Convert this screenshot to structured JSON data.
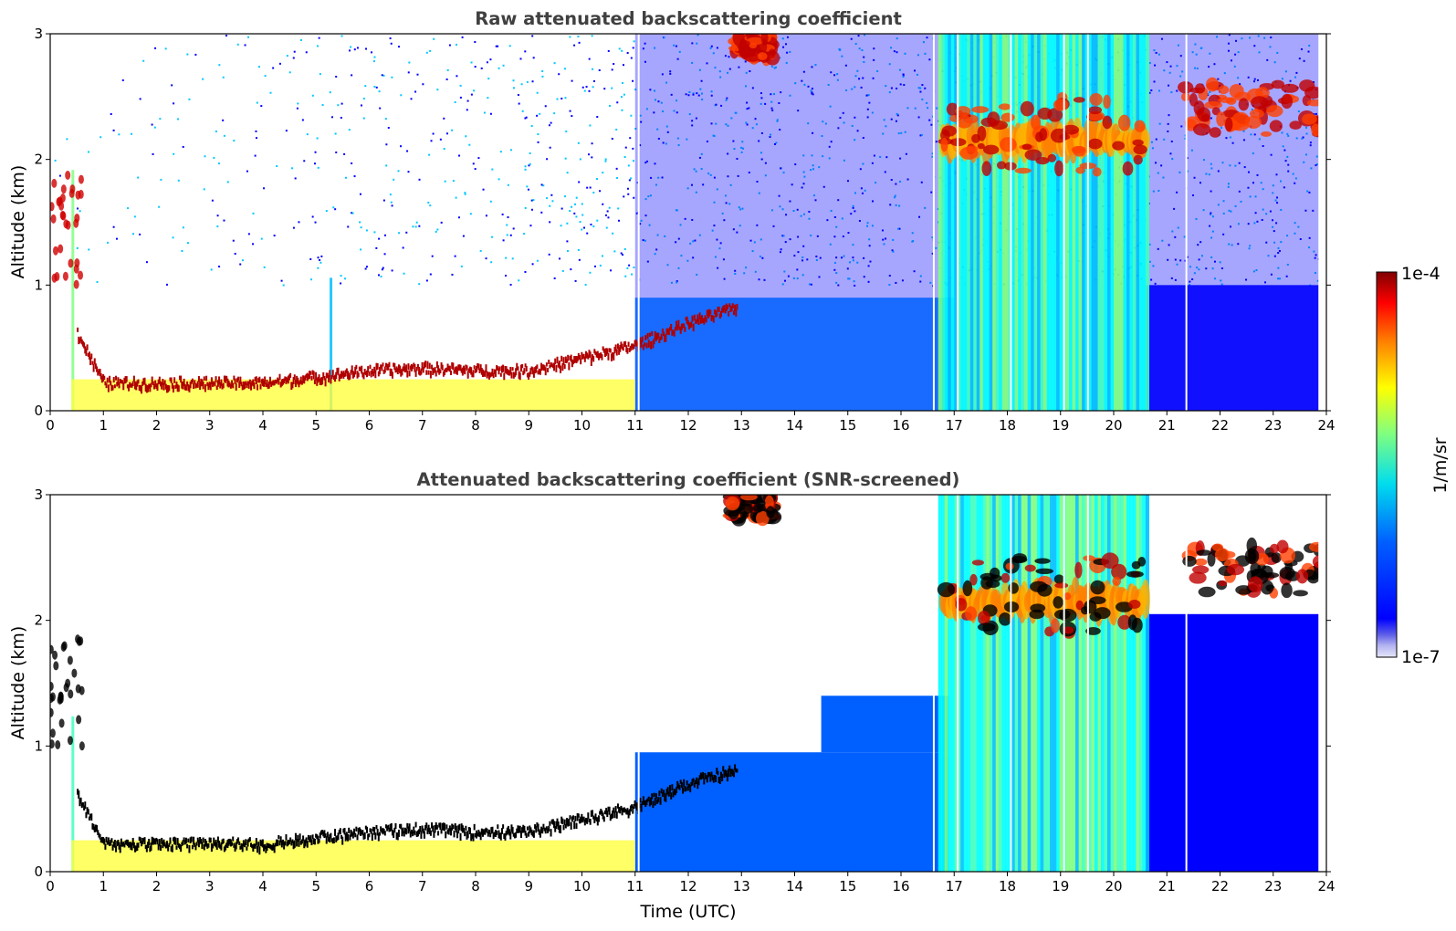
{
  "chart_data": [
    {
      "type": "heatmap",
      "title": "Raw attenuated backscattering coefficient",
      "xlabel": "",
      "ylabel": "Altitude (km)",
      "xlim": [
        0,
        24
      ],
      "ylim": [
        0,
        3
      ],
      "xticks": [
        "0",
        "1",
        "2",
        "3",
        "4",
        "5",
        "6",
        "7",
        "8",
        "9",
        "10",
        "11",
        "12",
        "13",
        "14",
        "15",
        "16",
        "17",
        "18",
        "19",
        "20",
        "21",
        "22",
        "23",
        "24"
      ],
      "yticks": [
        "0",
        "1",
        "2",
        "3"
      ],
      "features": {
        "boundary_layer_top_km": [
          [
            0.5,
            0.6
          ],
          [
            1,
            0.2
          ],
          [
            2,
            0.2
          ],
          [
            3,
            0.2
          ],
          [
            4,
            0.2
          ],
          [
            5,
            0.25
          ],
          [
            6,
            0.3
          ],
          [
            7,
            0.32
          ],
          [
            8,
            0.3
          ],
          [
            9,
            0.3
          ],
          [
            10,
            0.4
          ],
          [
            11,
            0.5
          ],
          [
            12,
            0.68
          ],
          [
            12.9,
            0.8
          ]
        ],
        "cloud_layers": [
          {
            "x": [
              16.8,
              20.6
            ],
            "y": [
              1.9,
              2.5
            ],
            "intensity": "high"
          },
          {
            "x": [
              21.3,
              23.9
            ],
            "y": [
              2.2,
              2.6
            ],
            "intensity": "high"
          },
          {
            "x": [
              12.8,
              13.6
            ],
            "y": [
              2.8,
              3.0
            ],
            "intensity": "high"
          }
        ],
        "gaps_x": [
          11.05,
          16.6,
          17.05,
          18.05,
          19.05,
          19.5,
          21.35
        ]
      }
    },
    {
      "type": "heatmap",
      "title": "Attenuated backscattering coefficient (SNR-screened)",
      "xlabel": "Time (UTC)",
      "ylabel": "Altitude (km)",
      "xlim": [
        0,
        24
      ],
      "ylim": [
        0,
        3
      ],
      "xticks": [
        "0",
        "1",
        "2",
        "3",
        "4",
        "5",
        "6",
        "7",
        "8",
        "9",
        "10",
        "11",
        "12",
        "13",
        "14",
        "15",
        "16",
        "17",
        "18",
        "19",
        "20",
        "21",
        "22",
        "23",
        "24"
      ],
      "yticks": [
        "0",
        "1",
        "2",
        "3"
      ],
      "screened": true
    }
  ],
  "colorbar": {
    "label": "1/m/sr",
    "max_label": "1e-4",
    "min_label": "1e-7",
    "scale": "log",
    "colormap": "jet",
    "colors": [
      "#800000",
      "#ff0000",
      "#ff8000",
      "#ffff00",
      "#80ff80",
      "#00ffff",
      "#0080ff",
      "#0000ff",
      "#1010e0",
      "#8080e8",
      "#e6e6fa"
    ]
  }
}
